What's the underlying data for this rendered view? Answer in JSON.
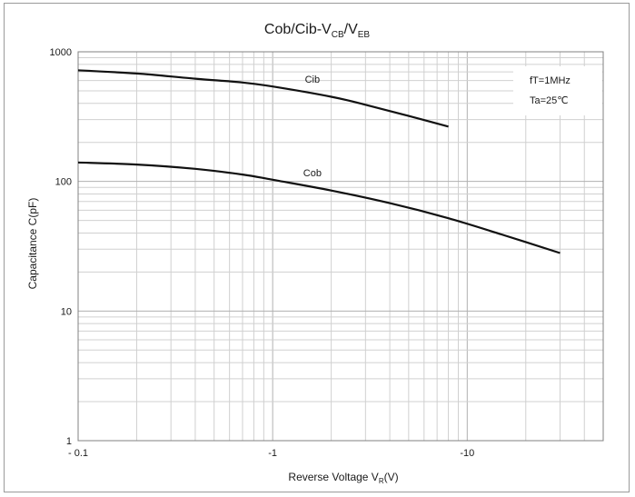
{
  "chart_data": {
    "type": "line",
    "title": {
      "prefix": "Cob/Cib-V",
      "sub1": "CB",
      "mid": "/V",
      "sub2": "EB"
    },
    "xlabel": {
      "main": "Reverse Voltage  V",
      "sub": "R",
      "suffix": "(V)"
    },
    "ylabel": "Capacitance  C(pF)",
    "x_scale": "log",
    "y_scale": "log",
    "xlim": [
      0.1,
      50
    ],
    "ylim": [
      1,
      1000
    ],
    "x_ticks": [
      {
        "value": 0.1,
        "label": "- 0.1"
      },
      {
        "value": 1,
        "label": "-1"
      },
      {
        "value": 10,
        "label": "-10"
      }
    ],
    "y_ticks": [
      {
        "value": 1000,
        "label": "1000"
      },
      {
        "value": 100,
        "label": "100"
      },
      {
        "value": 10,
        "label": "10"
      },
      {
        "value": 1,
        "label": "1"
      }
    ],
    "grid": true,
    "series": [
      {
        "name": "Cib",
        "x": [
          0.1,
          0.2,
          0.4,
          0.7,
          1,
          2,
          3,
          5,
          8
        ],
        "y": [
          720,
          680,
          620,
          580,
          540,
          450,
          390,
          320,
          265
        ]
      },
      {
        "name": "Cob",
        "x": [
          0.1,
          0.2,
          0.4,
          0.7,
          1,
          2,
          4,
          8,
          15,
          30
        ],
        "y": [
          140,
          135,
          125,
          113,
          103,
          85,
          68,
          52,
          39,
          28
        ]
      }
    ],
    "legend": {
      "lines": [
        "fT=1MHz",
        "Ta=25℃"
      ],
      "placement": "top-right"
    }
  }
}
